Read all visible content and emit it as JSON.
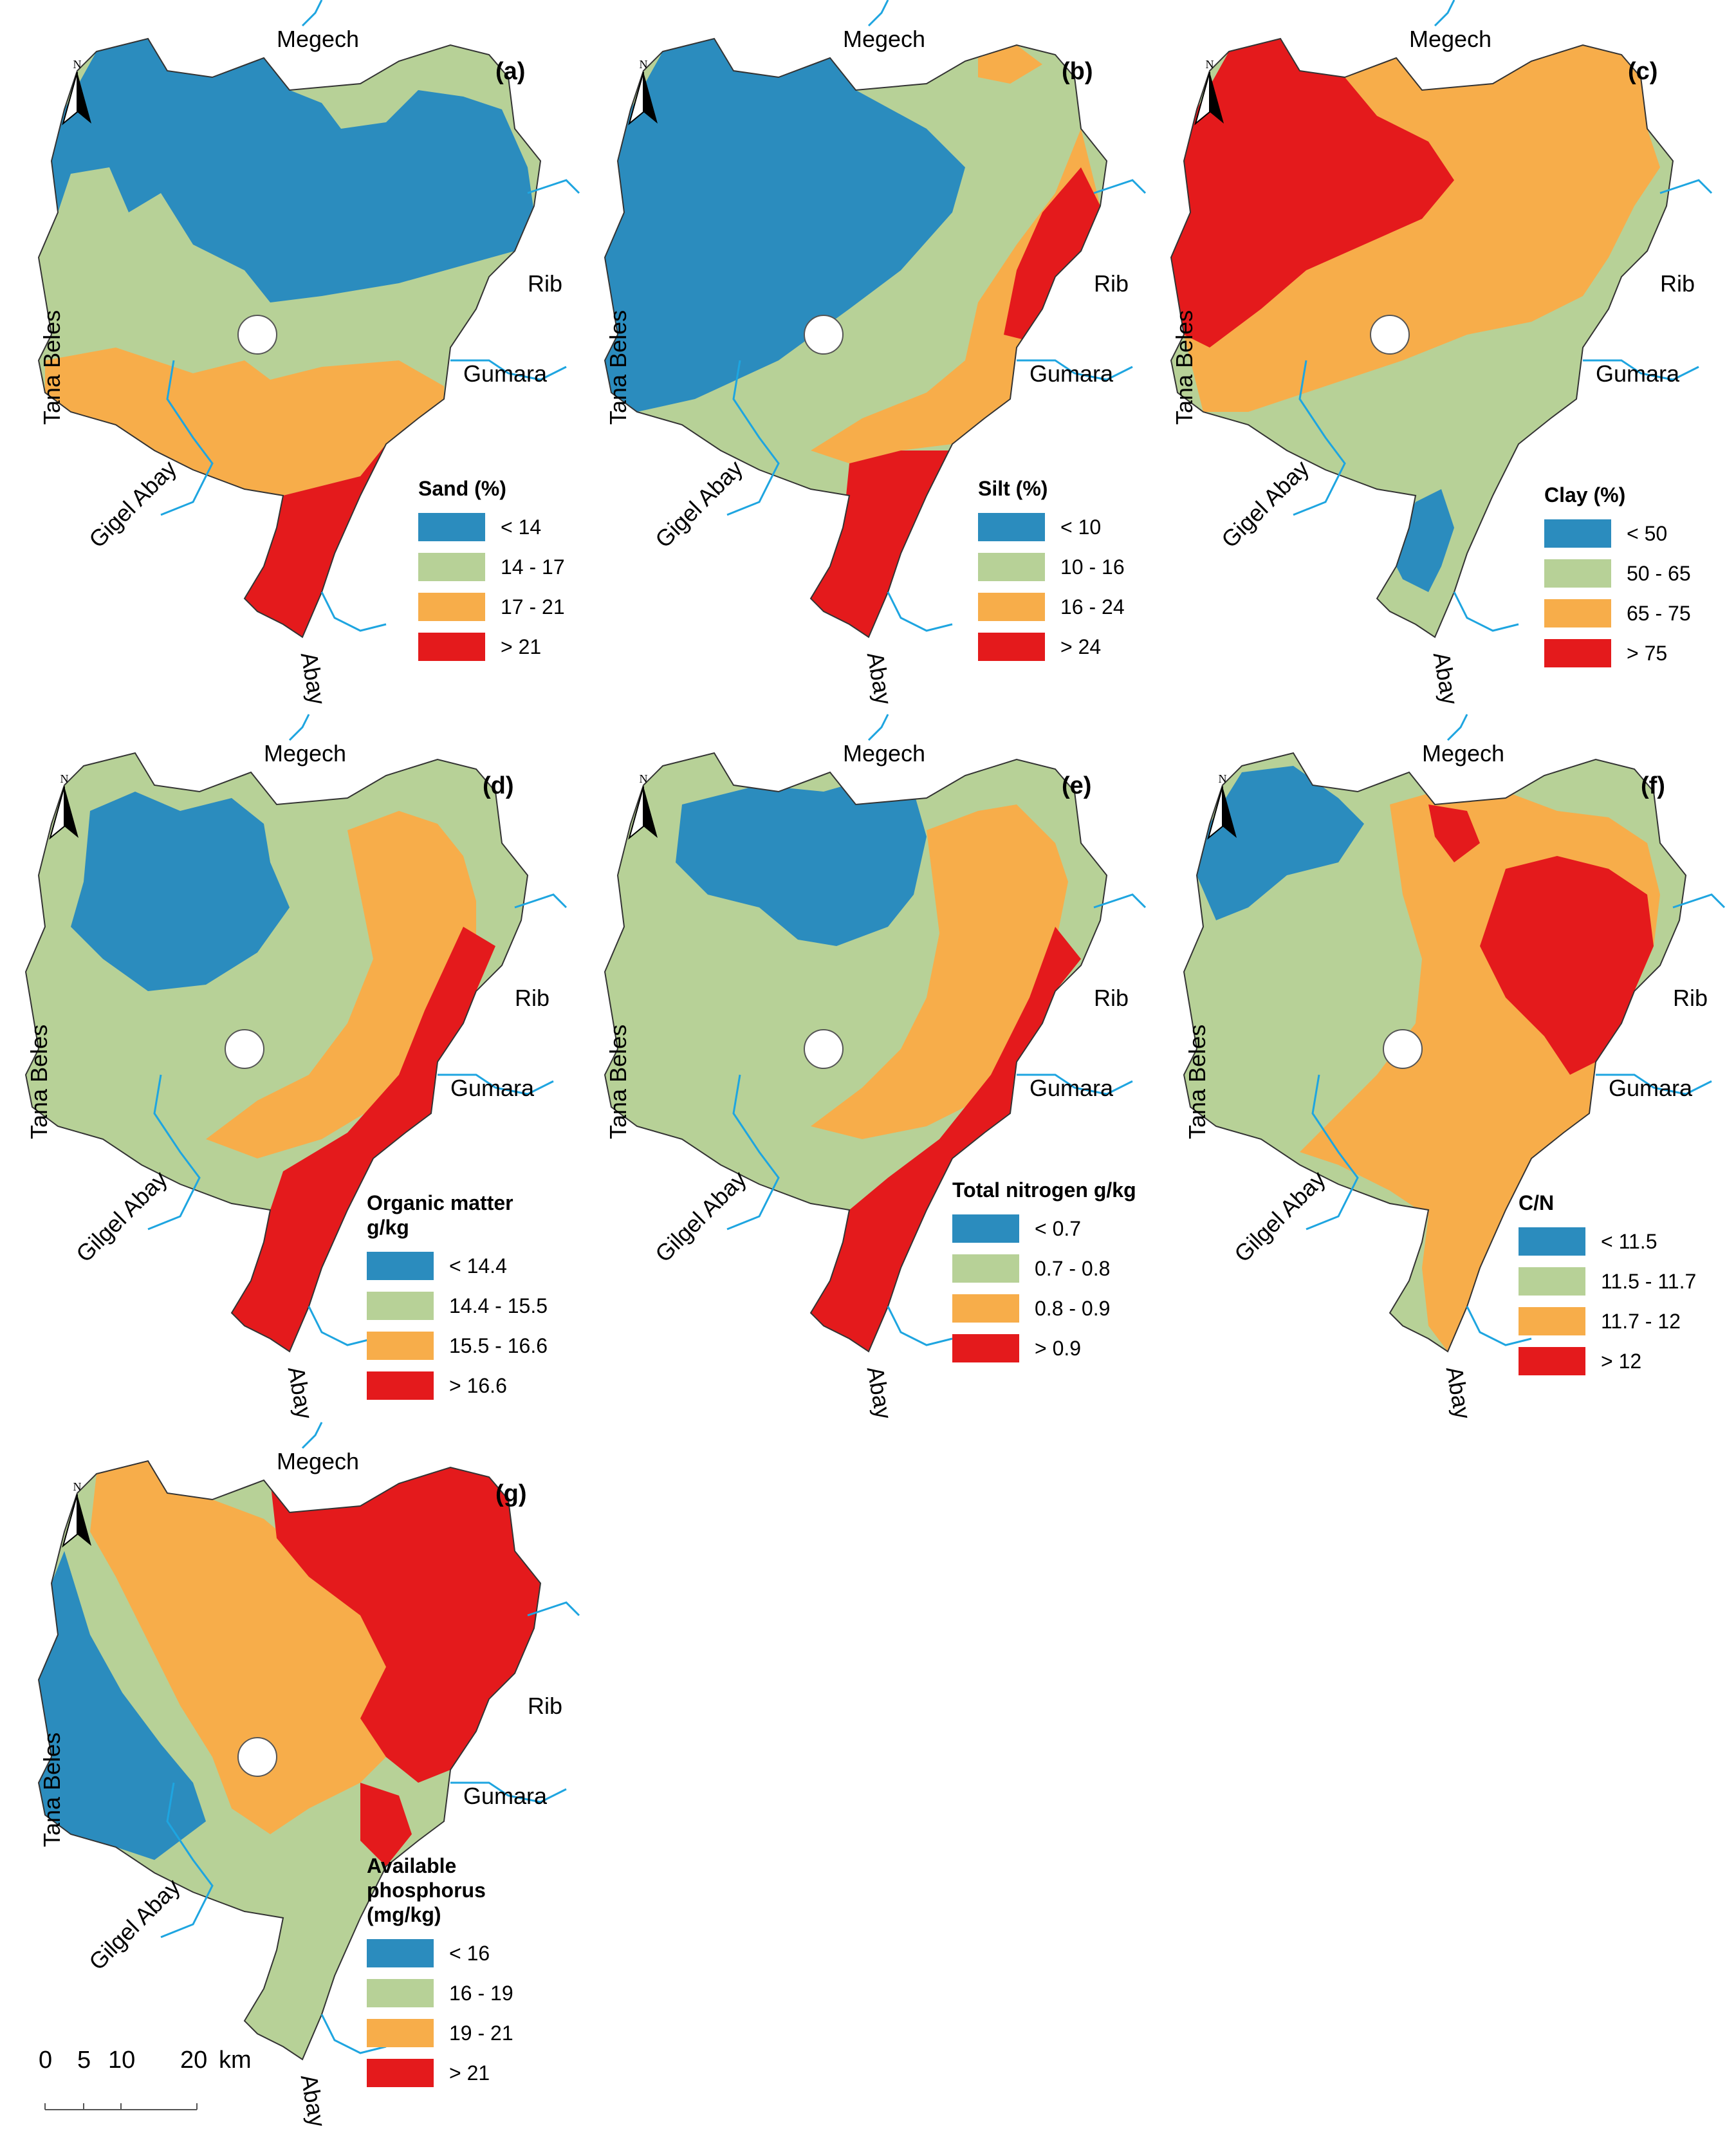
{
  "colors": {
    "blue": "#2b8cbe",
    "green": "#b7d197",
    "orange": "#f7ad4a",
    "red": "#e41a1c",
    "river": "#1ea5e0"
  },
  "north_label": "N",
  "rivers": {
    "megech": "Megech",
    "rib": "Rib",
    "gumara": "Gumara",
    "tana_beles": "Tana Beles",
    "gigel_abay": "Gigel Abay",
    "gilgel_abay": "Gilgel Abay",
    "abay": "Abay"
  },
  "panels": [
    {
      "id": "(a)",
      "legend_title": "Sand (%)",
      "classes": [
        "< 14",
        "14 - 17",
        "17 - 21",
        "> 21"
      ],
      "gigel_label": "Gigel Abay"
    },
    {
      "id": "(b)",
      "legend_title": "Silt (%)",
      "classes": [
        "< 10",
        "10 - 16",
        "16 - 24",
        "> 24"
      ],
      "gigel_label": "Gigel Abay"
    },
    {
      "id": "(c)",
      "legend_title": "Clay (%)",
      "classes": [
        "< 50",
        "50 - 65",
        "65 - 75",
        "> 75"
      ],
      "gigel_label": "Gigel Abay"
    },
    {
      "id": "(d)",
      "legend_title": "Organic matter g/kg",
      "classes": [
        "< 14.4",
        "14.4 - 15.5",
        "15.5 - 16.6",
        "> 16.6"
      ],
      "gigel_label": "Gilgel Abay"
    },
    {
      "id": "(e)",
      "legend_title": "Total nitrogen g/kg",
      "classes": [
        "< 0.7",
        "0.7 - 0.8",
        "0.8 - 0.9",
        "> 0.9"
      ],
      "gigel_label": "Gilgel Abay"
    },
    {
      "id": "(f)",
      "legend_title": "C/N",
      "classes": [
        "< 11.5",
        "11.5 - 11.7",
        "11.7 - 12",
        "> 12"
      ],
      "gigel_label": "Gilgel Abay"
    },
    {
      "id": "(g)",
      "legend_title": "Available phosphorus (mg/kg)",
      "classes": [
        "< 16",
        "16 - 19",
        "19 - 21",
        "> 21"
      ],
      "gigel_label": "Gilgel Abay"
    }
  ],
  "scale_bar": {
    "ticks": [
      "0",
      "5",
      "10",
      "20"
    ],
    "unit": "km"
  }
}
